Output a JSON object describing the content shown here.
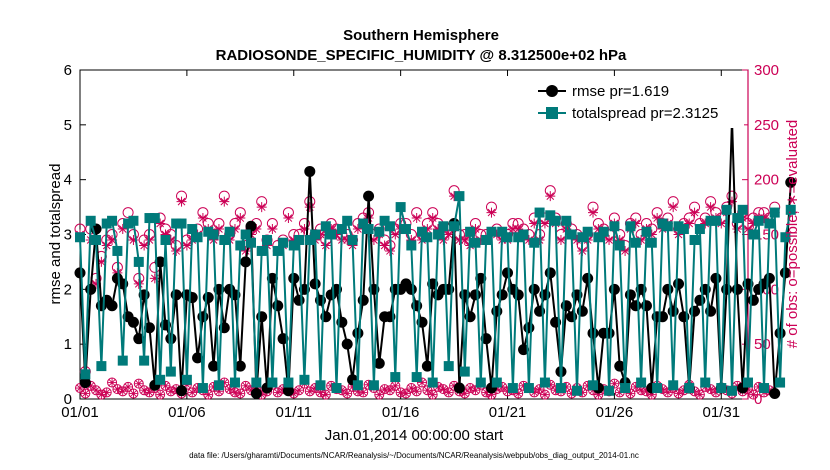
{
  "chart_data": {
    "type": "line",
    "title": "Southern Hemisphere",
    "subtitle": "RADIOSONDE_SPECIFIC_HUMIDITY @ 8.312500e+02 hPa",
    "xlabel": "Jan.01,2014 00:00:00 start",
    "ylabel_left": "rmse and totalspread",
    "ylabel_right": "# of obs: o=possible; ∗=evaluated",
    "footer": "data file: /Users/gharamti/Documents/NCAR/Reanalysis/~/Documents/NCAR/Reanalysis/webpub/obs_diag_output_2014-01.nc",
    "x_ticks": [
      {
        "day": 1,
        "label": "01/01"
      },
      {
        "day": 6,
        "label": "01/06"
      },
      {
        "day": 11,
        "label": "01/11"
      },
      {
        "day": 16,
        "label": "01/16"
      },
      {
        "day": 21,
        "label": "01/21"
      },
      {
        "day": 26,
        "label": "01/26"
      },
      {
        "day": 31,
        "label": "01/31"
      }
    ],
    "xlim": [
      1,
      32.25
    ],
    "ylim_left": [
      0,
      6
    ],
    "yticks_left": [
      "0",
      "1",
      "2",
      "3",
      "4",
      "5",
      "6"
    ],
    "ylim_right": [
      0,
      300
    ],
    "yticks_right": [
      "0",
      "50",
      "100",
      "150",
      "200",
      "250",
      "300"
    ],
    "x_start_day": 1,
    "x_step_days": 0.25,
    "series": [
      {
        "name": "rmse pr=1.619",
        "color": "#000000",
        "marker": "circle",
        "values": [
          2.3,
          0.3,
          2.0,
          3.1,
          1.7,
          1.8,
          1.7,
          2.2,
          2.1,
          1.5,
          1.4,
          1.1,
          1.9,
          1.3,
          0.25,
          2.5,
          1.35,
          1.1,
          1.9,
          0.15,
          1.9,
          1.85,
          0.75,
          1.5,
          1.85,
          0.6,
          2.0,
          1.3,
          2.0,
          1.9,
          0.6,
          2.5,
          3.15,
          0.1,
          1.5,
          0.2,
          2.2,
          1.7,
          1.1,
          0.15,
          2.2,
          1.8,
          2.0,
          4.15,
          2.1,
          1.8,
          1.5,
          1.9,
          2.0,
          1.4,
          1.0,
          0.35,
          1.2,
          1.8,
          3.7,
          2.0,
          0.65,
          1.5,
          1.5,
          2.0,
          2.0,
          2.1,
          2.0,
          1.7,
          1.4,
          0.6,
          2.1,
          1.9,
          2.0,
          2.0,
          3.2,
          0.2,
          1.9,
          1.5,
          1.9,
          2.2,
          1.1,
          0.2,
          1.6,
          1.9,
          2.3,
          2.0,
          1.9,
          0.9,
          1.3,
          2.0,
          1.6,
          1.9,
          2.3,
          1.4,
          0.5,
          1.7,
          1.5,
          1.9,
          1.6,
          2.2,
          1.2,
          0.2,
          1.2,
          1.2,
          2.0,
          0.6,
          0.3,
          1.9,
          1.7,
          2.0,
          1.7,
          0.2,
          1.5,
          1.5,
          2.0,
          1.6,
          2.1,
          1.5,
          0.2,
          1.6,
          1.8,
          2.0,
          1.6,
          2.2,
          0.2,
          2.0,
          5.1,
          2.0,
          0.2,
          2.1,
          1.8,
          2.0,
          2.1,
          2.2,
          0.1,
          1.2,
          2.3,
          3.95
        ]
      },
      {
        "name": "totalspread pr=2.3125",
        "color": "#007a7a",
        "marker": "square",
        "values": [
          2.95,
          0.45,
          3.25,
          2.9,
          0.6,
          3.2,
          3.25,
          2.7,
          0.7,
          3.2,
          3.25,
          2.5,
          0.7,
          3.3,
          3.3,
          0.35,
          2.9,
          0.5,
          3.2,
          3.2,
          0.35,
          3.1,
          2.95,
          0.2,
          3.05,
          3.0,
          0.25,
          2.9,
          3.05,
          0.3,
          2.8,
          3.0,
          2.85,
          0.3,
          2.7,
          2.9,
          0.3,
          2.7,
          2.85,
          0.3,
          2.8,
          2.9,
          0.35,
          2.9,
          3.0,
          0.25,
          3.15,
          3.0,
          0.2,
          3.1,
          3.25,
          2.9,
          0.25,
          3.2,
          3.1,
          0.25,
          3.05,
          3.25,
          3.15,
          0.4,
          3.5,
          3.1,
          2.8,
          0.4,
          3.05,
          2.95,
          0.3,
          3.0,
          3.15,
          0.6,
          3.15,
          3.7,
          0.5,
          3.05,
          2.85,
          0.3,
          2.9,
          3.05,
          0.3,
          3.05,
          2.95,
          0.2,
          2.95,
          3.0,
          0.2,
          2.85,
          3.4,
          0.3,
          3.35,
          3.25,
          0.2,
          3.25,
          3.0,
          0.15,
          2.95,
          3.05,
          0.25,
          2.95,
          3.05,
          0.15,
          3.15,
          2.8,
          0.2,
          3.15,
          2.85,
          0.3,
          3.05,
          2.85,
          0.2,
          3.2,
          3.15,
          0.25,
          3.15,
          3.1,
          0.2,
          2.9,
          3.1,
          0.3,
          3.25,
          3.25,
          0.2,
          3.45,
          0.15,
          3.3,
          3.45,
          0.3,
          3.0,
          3.25,
          0.2,
          3.2,
          3.4,
          0.3,
          2.95,
          3.45
        ]
      }
    ],
    "obs_possible_color": "#cc0055",
    "obs_possible": [
      155,
      25,
      155,
      110,
      130,
      145,
      150,
      120,
      160,
      170,
      150,
      110,
      145,
      150,
      120,
      165,
      155,
      150,
      140,
      185,
      145,
      150,
      155,
      170,
      160,
      150,
      160,
      185,
      150,
      160,
      170,
      140,
      155,
      160,
      180,
      145,
      160,
      140,
      145,
      170,
      150,
      150,
      160,
      180,
      150,
      155,
      145,
      160,
      155,
      150,
      150,
      145,
      160,
      165,
      170,
      150,
      155,
      145,
      140,
      155,
      160,
      160,
      150,
      170,
      150,
      160,
      170,
      160,
      150,
      155,
      190,
      150,
      150,
      145,
      160,
      150,
      150,
      175,
      155,
      150,
      150,
      160,
      160,
      155,
      150,
      165,
      150,
      165,
      190,
      165,
      150,
      160,
      155,
      150,
      140,
      150,
      175,
      160,
      155,
      150,
      165,
      150,
      140,
      160,
      165,
      150,
      160,
      155,
      170,
      160,
      165,
      180,
      155,
      160,
      165,
      175,
      160,
      165,
      180,
      170,
      165,
      175,
      185,
      160,
      170,
      160,
      165,
      170,
      170,
      165,
      175
    ],
    "obs_evaluated": [
      150,
      15,
      145,
      105,
      125,
      140,
      145,
      115,
      155,
      160,
      145,
      105,
      140,
      145,
      110,
      160,
      150,
      145,
      135,
      180,
      140,
      145,
      150,
      165,
      155,
      145,
      155,
      180,
      145,
      155,
      165,
      135,
      150,
      155,
      175,
      140,
      155,
      135,
      140,
      165,
      145,
      145,
      155,
      175,
      145,
      150,
      140,
      155,
      150,
      145,
      145,
      140,
      155,
      160,
      165,
      145,
      150,
      140,
      135,
      150,
      155,
      155,
      145,
      165,
      145,
      155,
      165,
      155,
      145,
      150,
      185,
      145,
      145,
      140,
      155,
      145,
      145,
      170,
      150,
      145,
      145,
      155,
      155,
      150,
      145,
      160,
      145,
      160,
      185,
      160,
      145,
      155,
      150,
      145,
      135,
      145,
      170,
      155,
      150,
      145,
      160,
      145,
      135,
      155,
      160,
      145,
      155,
      150,
      165,
      155,
      160,
      175,
      150,
      155,
      160,
      170,
      155,
      160,
      175,
      165,
      160,
      170,
      180,
      155,
      165,
      155,
      160,
      165,
      165,
      160,
      170
    ],
    "obs_low": [
      10,
      5,
      12,
      8,
      4,
      6,
      15,
      9,
      7,
      11,
      5,
      14,
      8,
      6,
      10,
      4,
      12,
      7,
      9,
      5,
      13,
      6,
      10,
      8,
      4,
      11,
      7,
      15,
      9,
      6,
      5,
      12,
      8,
      10,
      4,
      7,
      13,
      6,
      9,
      11,
      5,
      8,
      14,
      7,
      10,
      6,
      4,
      12,
      9,
      8,
      5,
      11,
      7,
      6,
      13,
      10,
      4,
      9,
      8,
      12,
      6,
      5,
      10,
      7,
      15,
      8,
      4,
      11,
      9,
      6,
      12,
      7,
      5,
      10,
      8,
      13,
      6,
      4,
      9,
      11,
      7,
      8,
      5,
      12,
      10,
      6,
      9,
      4,
      13,
      8,
      7,
      11,
      5,
      10,
      6,
      12,
      8,
      4,
      9,
      7,
      14,
      6,
      10,
      5,
      11,
      8,
      7,
      4,
      12,
      9,
      6,
      10,
      5,
      8,
      13,
      7,
      4,
      11,
      9,
      6,
      10,
      8,
      5,
      12,
      7,
      9,
      4,
      11,
      6,
      8
    ]
  }
}
